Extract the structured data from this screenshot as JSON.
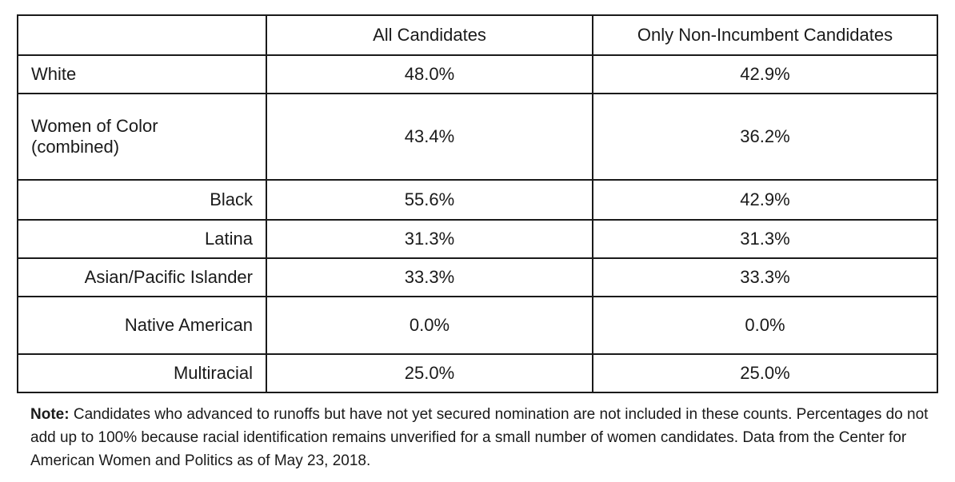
{
  "table": {
    "headers": [
      "",
      "All Candidates",
      "Only Non-Incumbent Candidates"
    ],
    "rows": [
      {
        "label": "White",
        "all": "48.0%",
        "non_incumbent": "42.9%"
      },
      {
        "label": "Women of Color (combined)",
        "label_line1": "Women of Color",
        "label_line2": "(combined)",
        "all": "43.4%",
        "non_incumbent": "36.2%"
      },
      {
        "label": "Black",
        "all": "55.6%",
        "non_incumbent": "42.9%"
      },
      {
        "label": "Latina",
        "all": "31.3%",
        "non_incumbent": "31.3%"
      },
      {
        "label": "Asian/Pacific Islander",
        "all": "33.3%",
        "non_incumbent": "33.3%"
      },
      {
        "label": "Native American",
        "all": "0.0%",
        "non_incumbent": "0.0%"
      },
      {
        "label": "Multiracial",
        "all": "25.0%",
        "non_incumbent": "25.0%"
      }
    ]
  },
  "note": {
    "label": "Note:",
    "text": " Candidates who advanced to runoffs but have not yet secured nomination are not included in these counts. Percentages do not add up to 100% because racial identification remains unverified for a small number of women candidates. Data from the Center for American Women and Politics as of May 23, 2018."
  }
}
